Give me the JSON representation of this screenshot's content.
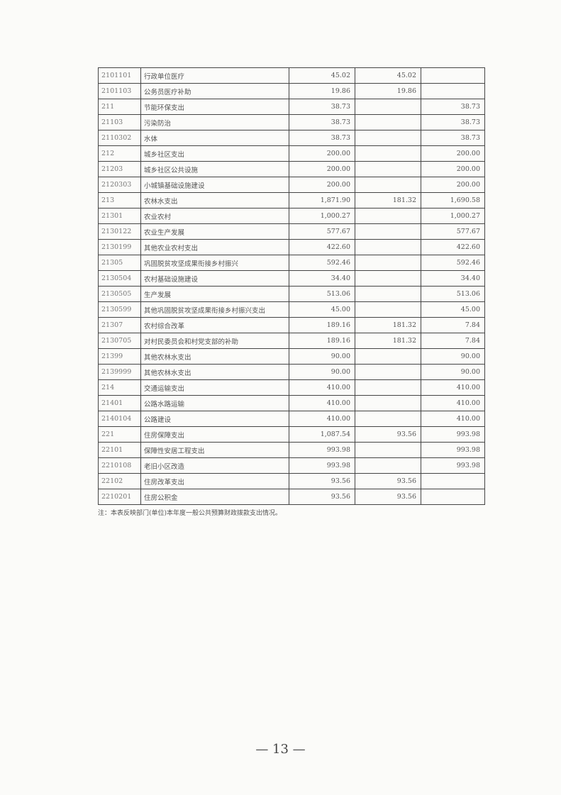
{
  "table": {
    "rows": [
      [
        "2101101",
        "行政单位医疗",
        "45.02",
        "45.02",
        ""
      ],
      [
        "2101103",
        "公务员医疗补助",
        "19.86",
        "19.86",
        ""
      ],
      [
        "211",
        "节能环保支出",
        "38.73",
        "",
        "38.73"
      ],
      [
        "21103",
        "污染防治",
        "38.73",
        "",
        "38.73"
      ],
      [
        "2110302",
        "水体",
        "38.73",
        "",
        "38.73"
      ],
      [
        "212",
        "城乡社区支出",
        "200.00",
        "",
        "200.00"
      ],
      [
        "21203",
        "城乡社区公共设施",
        "200.00",
        "",
        "200.00"
      ],
      [
        "2120303",
        "小城镇基础设施建设",
        "200.00",
        "",
        "200.00"
      ],
      [
        "213",
        "农林水支出",
        "1,871.90",
        "181.32",
        "1,690.58"
      ],
      [
        "21301",
        "农业农村",
        "1,000.27",
        "",
        "1,000.27"
      ],
      [
        "2130122",
        "农业生产发展",
        "577.67",
        "",
        "577.67"
      ],
      [
        "2130199",
        "其他农业农村支出",
        "422.60",
        "",
        "422.60"
      ],
      [
        "21305",
        "巩固脱贫攻坚成果衔接乡村振兴",
        "592.46",
        "",
        "592.46"
      ],
      [
        "2130504",
        "农村基础设施建设",
        "34.40",
        "",
        "34.40"
      ],
      [
        "2130505",
        "生产发展",
        "513.06",
        "",
        "513.06"
      ],
      [
        "2130599",
        "其他巩固脱贫攻坚成果衔接乡村振兴支出",
        "45.00",
        "",
        "45.00"
      ],
      [
        "21307",
        "农村综合改革",
        "189.16",
        "181.32",
        "7.84"
      ],
      [
        "2130705",
        "对村民委员会和村党支部的补助",
        "189.16",
        "181.32",
        "7.84"
      ],
      [
        "21399",
        "其他农林水支出",
        "90.00",
        "",
        "90.00"
      ],
      [
        "2139999",
        "其他农林水支出",
        "90.00",
        "",
        "90.00"
      ],
      [
        "214",
        "交通运输支出",
        "410.00",
        "",
        "410.00"
      ],
      [
        "21401",
        "公路水路运输",
        "410.00",
        "",
        "410.00"
      ],
      [
        "2140104",
        "公路建设",
        "410.00",
        "",
        "410.00"
      ],
      [
        "221",
        "住房保障支出",
        "1,087.54",
        "93.56",
        "993.98"
      ],
      [
        "22101",
        "保障性安居工程支出",
        "993.98",
        "",
        "993.98"
      ],
      [
        "2210108",
        "老旧小区改造",
        "993.98",
        "",
        "993.98"
      ],
      [
        "22102",
        "住房改革支出",
        "93.56",
        "93.56",
        ""
      ],
      [
        "2210201",
        "住房公积金",
        "93.56",
        "93.56",
        ""
      ]
    ]
  },
  "note": "注：本表反映部门(单位)本年度一般公共预算财政拨款支出情况。",
  "page_number": "— 13 —"
}
